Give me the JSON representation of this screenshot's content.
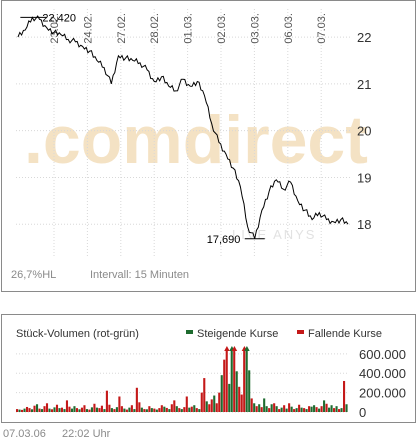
{
  "chart_data": [
    {
      "type": "line",
      "watermark": {
        "text_main": ".comdirect",
        "text_sub": "LIVE ANYS"
      },
      "x_tick_labels": [
        "23.02.",
        "24.02.",
        "27.02.",
        "28.02.",
        "01.03.",
        "02.03.",
        "03.03.",
        "06.03.",
        "07.03."
      ],
      "y_ticks": [
        18,
        19,
        20,
        21,
        22
      ],
      "y_tick_labels": [
        "18",
        "19",
        "20",
        "21",
        "22"
      ],
      "ylim": [
        17.3,
        22.6
      ],
      "series": [
        {
          "values": [
            22.0,
            22.15,
            22.42,
            22.38,
            22.2,
            22.1,
            22.05,
            21.95,
            21.9,
            21.8,
            21.7,
            21.5,
            21.35,
            21.0,
            21.6,
            21.55,
            21.5,
            21.45,
            21.3,
            21.05,
            21.15,
            20.95,
            20.85,
            21.1,
            20.95,
            21.05,
            20.75,
            20.15,
            19.75,
            19.5,
            19.2,
            18.8,
            17.95,
            17.69,
            18.3,
            18.7,
            18.95,
            18.75,
            18.9,
            18.5,
            18.3,
            18.1,
            18.25,
            18.1,
            18.05,
            18.1,
            18.0
          ]
        }
      ],
      "annotations": [
        {
          "label": "22,420",
          "value": 22.42
        },
        {
          "label": "17,690",
          "value": 17.69
        }
      ],
      "footer_left": "26,7%HL",
      "footer_right": "Intervall: 15 Minuten"
    },
    {
      "type": "bar",
      "title": "Stück-Volumen (rot-grün)",
      "legend": [
        {
          "name": "Steigende Kurse",
          "color": "#1e6b2f"
        },
        {
          "name": "Fallende Kurse",
          "color": "#c41818"
        }
      ],
      "y_ticks": [
        0,
        200000,
        400000,
        600000
      ],
      "y_tick_labels": [
        "0",
        "200.000",
        "400.000",
        "600.000"
      ],
      "ylim": [
        0,
        650000
      ],
      "values": [
        30000,
        25000,
        22000,
        35000,
        52000,
        40000,
        28000,
        65000,
        80000,
        35000,
        30000,
        60000,
        90000,
        35000,
        28000,
        48000,
        75000,
        40000,
        45000,
        30000,
        120000,
        55000,
        35000,
        60000,
        40000,
        28000,
        45000,
        70000,
        30000,
        25000,
        48000,
        85000,
        45000,
        40000,
        65000,
        30000,
        220000,
        75000,
        40000,
        30000,
        50000,
        160000,
        60000,
        35000,
        25000,
        45000,
        70000,
        30000,
        250000,
        100000,
        45000,
        30000,
        28000,
        60000,
        40000,
        35000,
        25000,
        40000,
        70000,
        55000,
        42000,
        30000,
        80000,
        120000,
        60000,
        40000,
        30000,
        50000,
        160000,
        45000,
        55000,
        70000,
        40000,
        30000,
        200000,
        350000,
        110000,
        80000,
        130000,
        170000,
        90000,
        200000,
        380000,
        540000,
        650000,
        290000,
        650000,
        650000,
        420000,
        260000,
        180000,
        650000,
        650000,
        430000,
        140000,
        90000,
        60000,
        80000,
        50000,
        140000,
        60000,
        40000,
        80000,
        90000,
        60000,
        30000,
        45000,
        70000,
        35000,
        90000,
        55000,
        30000,
        40000,
        75000,
        45000,
        40000,
        30000,
        60000,
        55000,
        70000,
        50000,
        35000,
        60000,
        120000,
        85000,
        45000,
        70000,
        40000,
        60000,
        30000,
        40000,
        320000,
        80000
      ],
      "colors": [
        "r",
        "g",
        "r",
        "g",
        "r",
        "r",
        "g",
        "r",
        "g",
        "r",
        "g",
        "r",
        "r",
        "g",
        "r",
        "g",
        "r",
        "g",
        "r",
        "g",
        "r",
        "r",
        "g",
        "g",
        "r",
        "g",
        "r",
        "r",
        "g",
        "r",
        "g",
        "r",
        "g",
        "r",
        "r",
        "g",
        "r",
        "r",
        "g",
        "r",
        "g",
        "r",
        "r",
        "g",
        "r",
        "g",
        "r",
        "g",
        "r",
        "r",
        "g",
        "r",
        "g",
        "r",
        "g",
        "r",
        "g",
        "r",
        "r",
        "g",
        "r",
        "g",
        "r",
        "r",
        "g",
        "r",
        "g",
        "r",
        "r",
        "g",
        "r",
        "g",
        "r",
        "g",
        "r",
        "r",
        "g",
        "r",
        "r",
        "g",
        "r",
        "r",
        "g",
        "r",
        "r",
        "g",
        "g",
        "r",
        "g",
        "r",
        "r",
        "r",
        "g",
        "g",
        "r",
        "g",
        "r",
        "g",
        "r",
        "g",
        "g",
        "r",
        "g",
        "r",
        "g",
        "r",
        "g",
        "r",
        "g",
        "r",
        "g",
        "r",
        "g",
        "r",
        "g",
        "r",
        "g",
        "r",
        "g",
        "g",
        "r",
        "g",
        "r",
        "g",
        "r",
        "g",
        "g",
        "r",
        "g",
        "r",
        "g",
        "r",
        "g"
      ]
    }
  ],
  "footer": {
    "date": "07.03.06",
    "time": "22:02 Uhr"
  },
  "colors": {
    "price_line": "#000000",
    "up": "#1e6b2f",
    "down": "#c41818",
    "grid": "#d8d8d8",
    "watermark_orange": "#f4e2c4",
    "watermark_gray": "#e6e6e6"
  }
}
